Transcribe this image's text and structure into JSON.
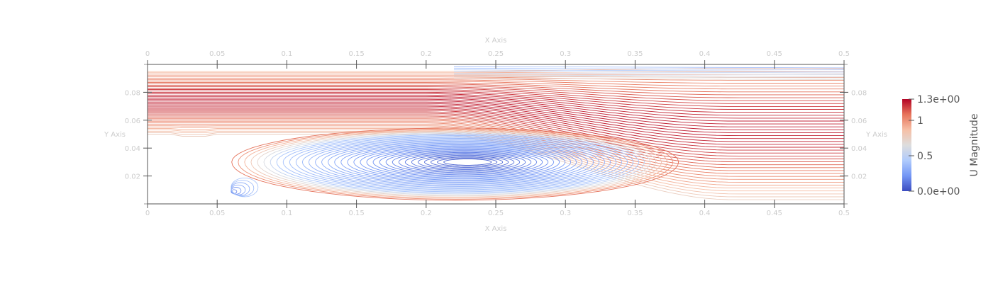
{
  "chart_data": {
    "type": "streamlines",
    "title": "",
    "xlabel": "X Axis",
    "ylabel": "Y Axis",
    "xlim": [
      0,
      0.5
    ],
    "ylim": [
      0,
      0.1
    ],
    "x_ticks": [
      0,
      0.05,
      0.1,
      0.15,
      0.2,
      0.25,
      0.3,
      0.35,
      0.4,
      0.45,
      0.5
    ],
    "x_tick_labels": [
      "0",
      "0.05",
      "0.1",
      "0.15",
      "0.2",
      "0.25",
      "0.3",
      "0.35",
      "0.4",
      "0.45",
      "0.5"
    ],
    "y_ticks": [
      0.02,
      0.04,
      0.06,
      0.08
    ],
    "y_tick_labels": [
      "0.02",
      "0.04",
      "0.06",
      "0.08"
    ],
    "step": {
      "x": 0.05,
      "height": 0.05
    },
    "recirculation_zone": {
      "x_start": 0.05,
      "x_reattach": 0.38,
      "center_x": 0.23,
      "center_y": 0.03
    },
    "colorbar": {
      "title": "U Magnitude",
      "min": 0.0,
      "max": 1.3,
      "tick_values": [
        0.0,
        0.5,
        1.0,
        1.3
      ],
      "tick_labels": [
        "0.0e+00",
        "0.5",
        "1",
        "1.3e+00"
      ],
      "colormap": [
        "#3b4cc0",
        "#7396f5",
        "#b0cbfc",
        "#dddddd",
        "#f6bfa6",
        "#e7745b",
        "#b40426"
      ]
    },
    "colors": {
      "axis_text": "#cccccc",
      "axis_line": "#555555",
      "colorbar_text": "#555555"
    }
  }
}
